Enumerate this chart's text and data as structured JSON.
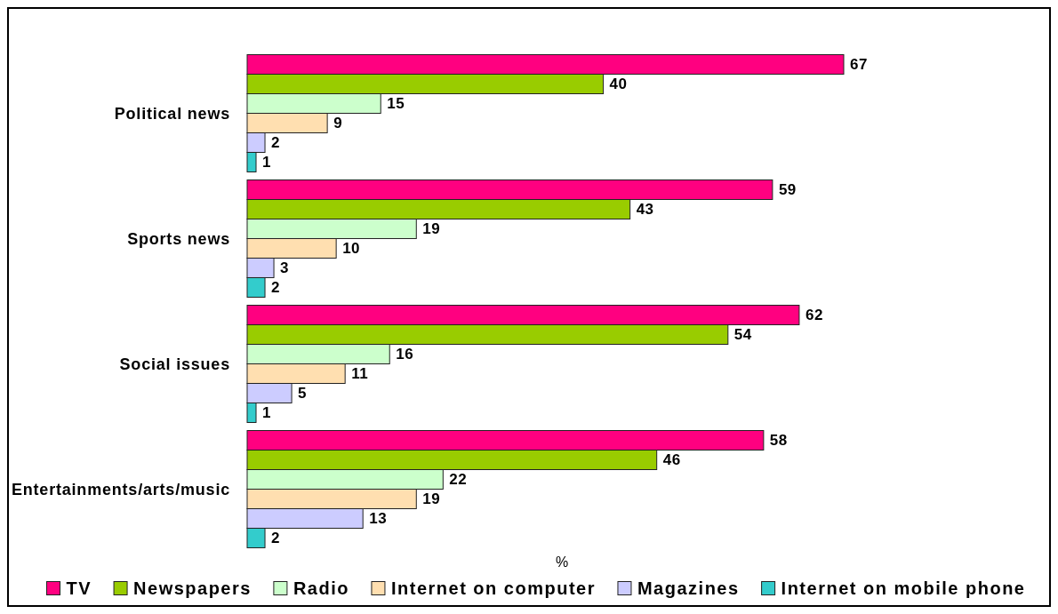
{
  "chart_data": {
    "type": "bar",
    "orientation": "horizontal",
    "xlabel": "%",
    "categories": [
      "Political news",
      "Sports news",
      "Social issues",
      "Entertainments/arts/music"
    ],
    "series": [
      {
        "name": "TV",
        "color": "#ff0080",
        "values": [
          67,
          59,
          62,
          58
        ]
      },
      {
        "name": "Newspapers",
        "color": "#99cc00",
        "values": [
          40,
          43,
          54,
          46
        ]
      },
      {
        "name": "Radio",
        "color": "#ccffcc",
        "values": [
          15,
          19,
          16,
          22
        ]
      },
      {
        "name": "Internet on computer",
        "color": "#ffdfb0",
        "values": [
          9,
          10,
          11,
          19
        ]
      },
      {
        "name": "Magazines",
        "color": "#ccccff",
        "values": [
          2,
          3,
          5,
          13
        ]
      },
      {
        "name": "Internet on mobile phone",
        "color": "#33cccc",
        "values": [
          1,
          2,
          1,
          2
        ]
      }
    ],
    "data_labels": true,
    "legend": "bottom",
    "tick_labels": "y"
  }
}
